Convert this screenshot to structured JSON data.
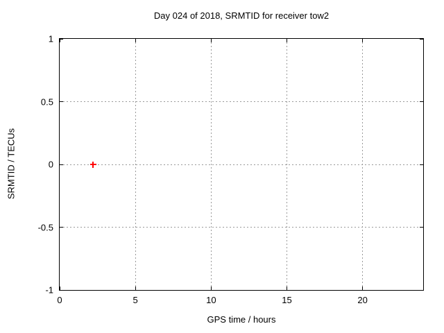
{
  "chart_data": {
    "type": "scatter",
    "title": "Day 024 of 2018, SRMTID for receiver tow2",
    "xlabel": "GPS time / hours",
    "ylabel": "SRMTID / TECUs",
    "xlim": [
      0,
      24
    ],
    "ylim": [
      -1,
      1
    ],
    "xticks": [
      0,
      5,
      10,
      15,
      20
    ],
    "yticks": [
      -1,
      -0.5,
      0,
      0.5,
      1
    ],
    "grid": true,
    "legend_position": "none",
    "series": [
      {
        "name": "SRMTID",
        "marker": "plus",
        "color": "#ff0000",
        "points": [
          {
            "x": 2.2,
            "y": 0.0
          }
        ]
      }
    ],
    "colors": {
      "axis": "#000000",
      "grid": "#999999",
      "text": "#000000",
      "background": "#ffffff"
    }
  }
}
